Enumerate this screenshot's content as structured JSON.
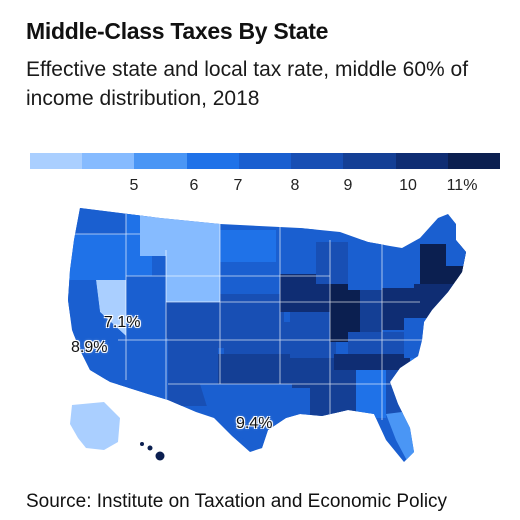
{
  "header": {
    "title": "Middle-Class Taxes By State",
    "subtitle": "Effective state and local tax rate, middle 60% of income distribution, 2018"
  },
  "legend": {
    "colors": [
      "#aacfff",
      "#86bbff",
      "#4a96f5",
      "#1f72e8",
      "#1a5fd0",
      "#184fb4",
      "#143f95",
      "#0f2d73",
      "#0b1f50"
    ],
    "ticks": [
      "5",
      "6",
      "7",
      "8",
      "9",
      "10",
      "11%"
    ]
  },
  "annotations": {
    "nevada": "7.1%",
    "california": "8.9%",
    "texas": "9.4%"
  },
  "source": "Source: Institute on Taxation and Economic Policy"
}
